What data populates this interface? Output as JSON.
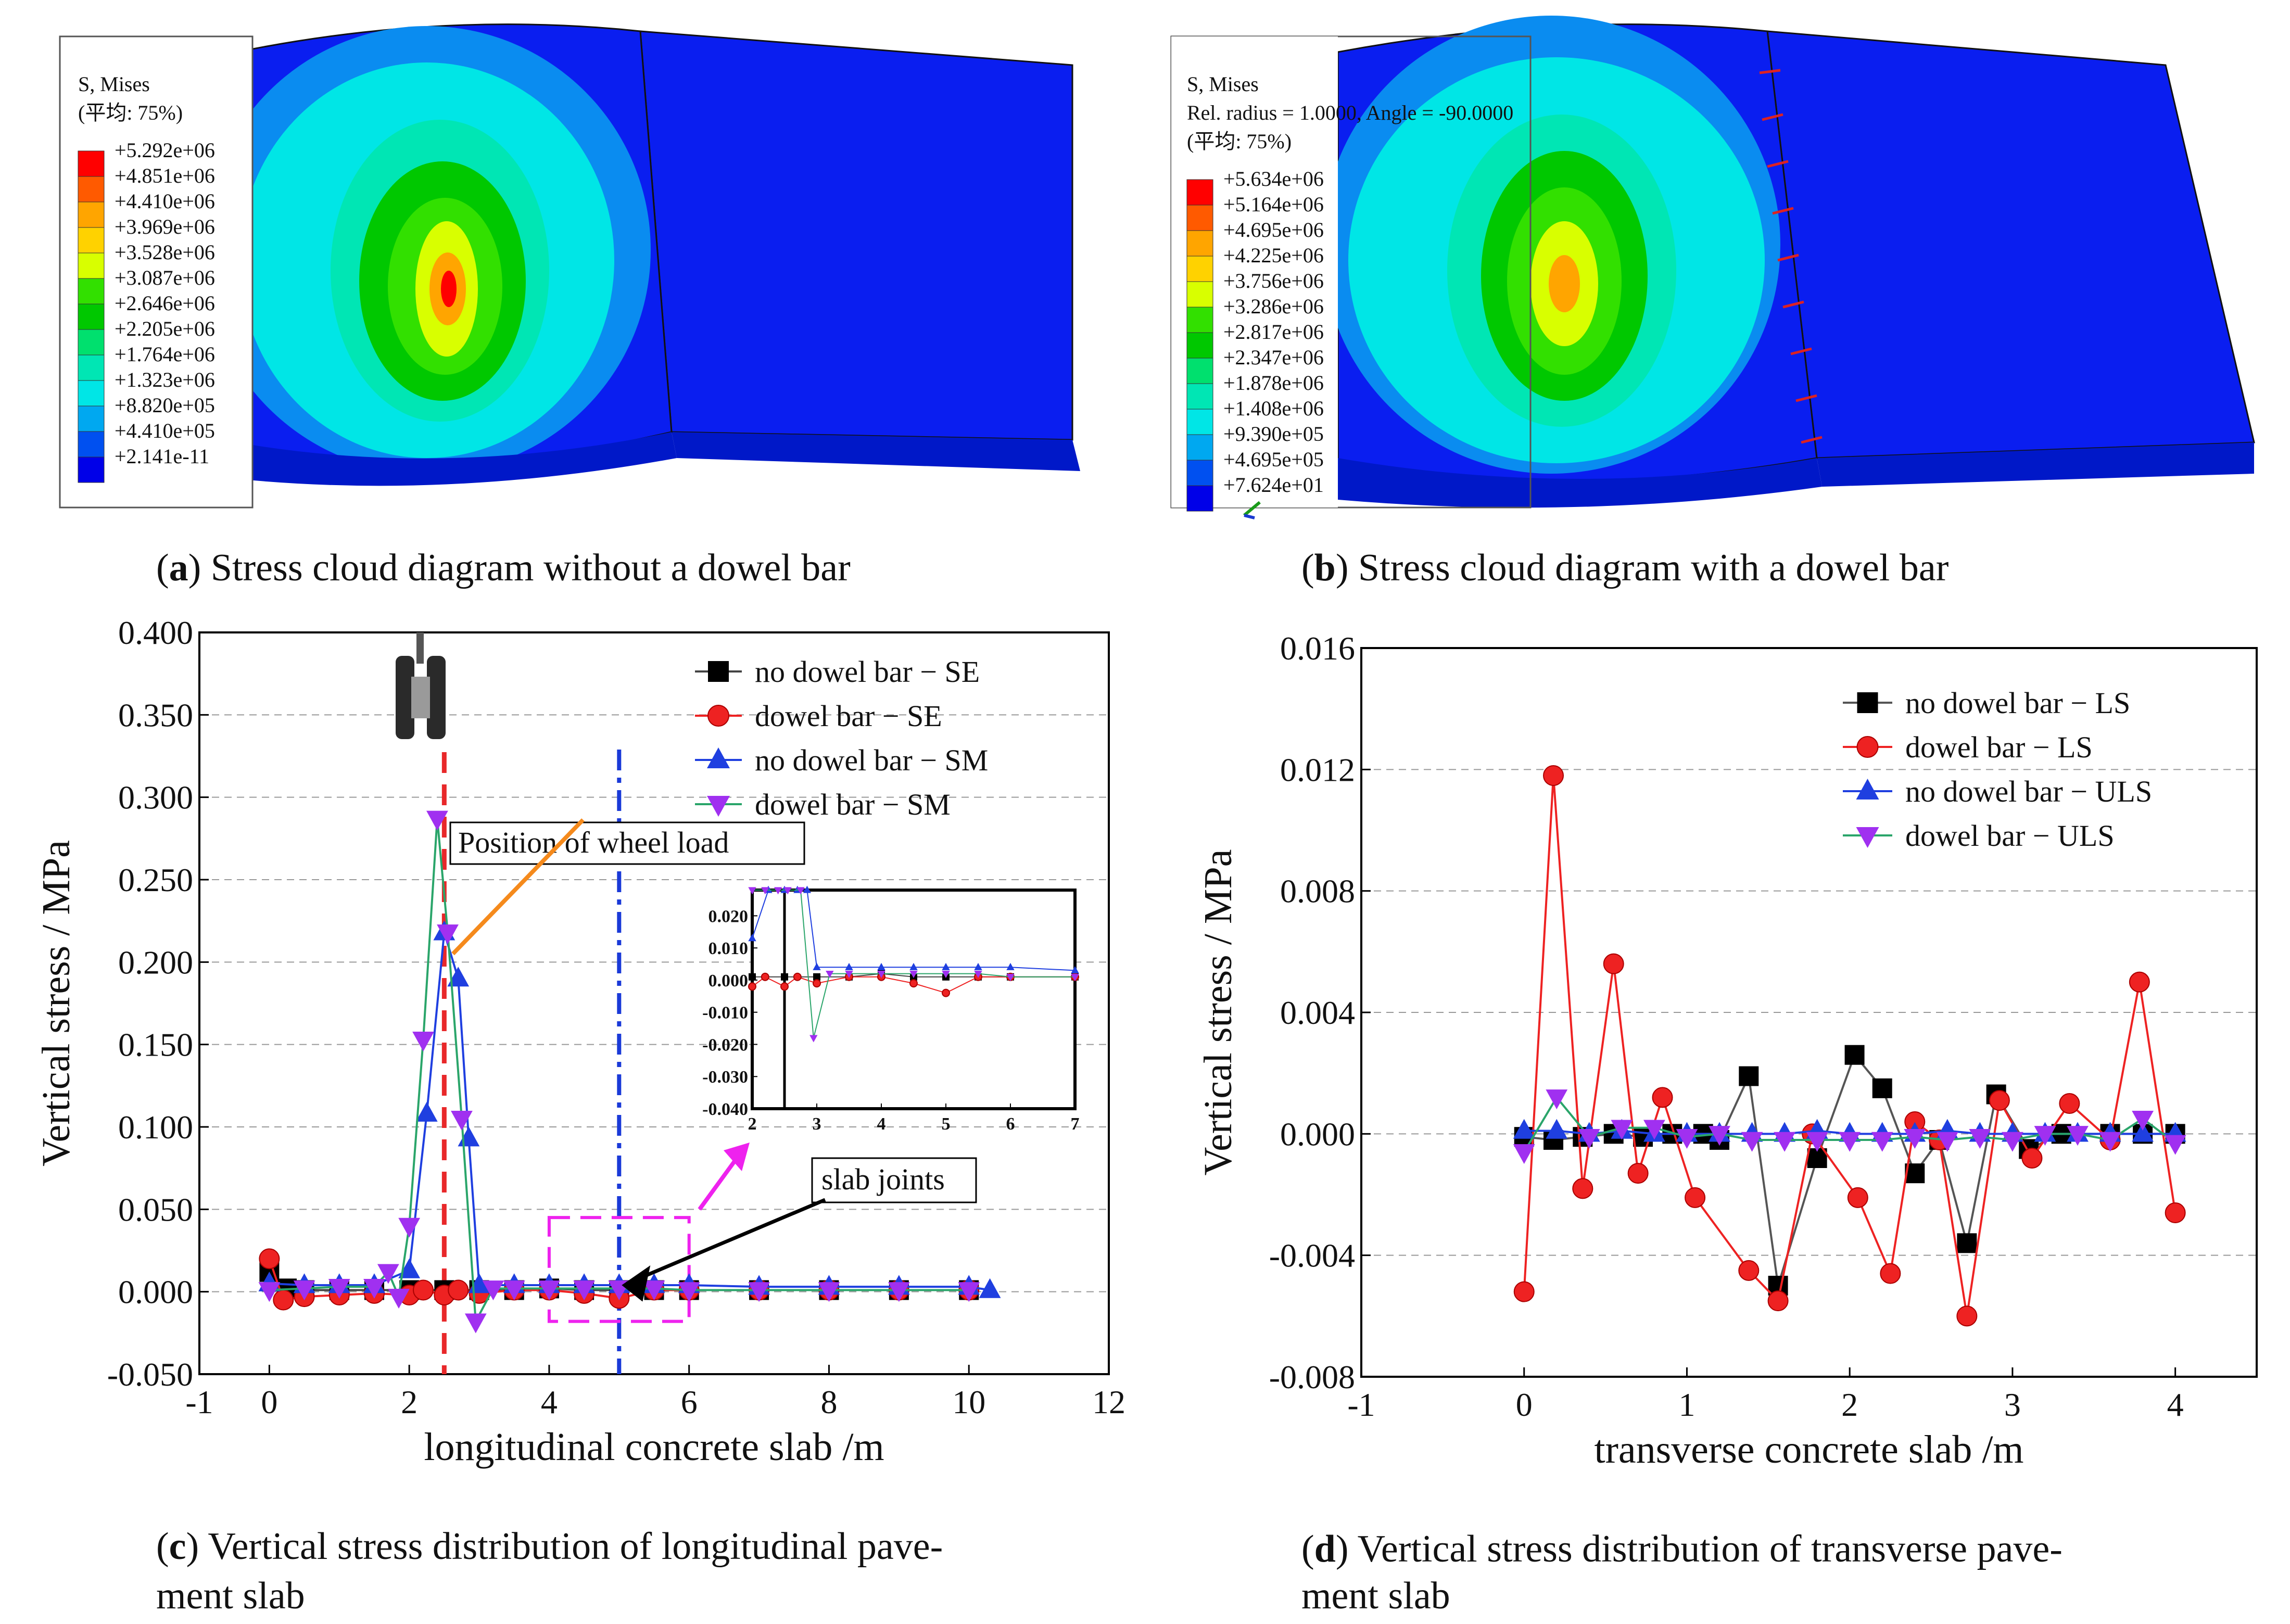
{
  "panels": {
    "a": {
      "label": "a",
      "caption": "Stress cloud diagram without a dowel bar",
      "legend_title": [
        "S, Mises",
        "(平均: 75%)"
      ],
      "legend_values": [
        "+5.292e+06",
        "+4.851e+06",
        "+4.410e+06",
        "+3.969e+06",
        "+3.528e+06",
        "+3.087e+06",
        "+2.646e+06",
        "+2.205e+06",
        "+1.764e+06",
        "+1.323e+06",
        "+8.820e+05",
        "+4.410e+05",
        "+2.141e-11"
      ]
    },
    "b": {
      "label": "b",
      "caption": "Stress cloud diagram with a dowel bar",
      "legend_title": [
        "S, Mises",
        "Rel. radius = 1.0000, Angle = -90.0000",
        "(平均: 75%)"
      ],
      "legend_values": [
        "+5.634e+06",
        "+5.164e+06",
        "+4.695e+06",
        "+4.225e+06",
        "+3.756e+06",
        "+3.286e+06",
        "+2.817e+06",
        "+2.347e+06",
        "+1.878e+06",
        "+1.408e+06",
        "+9.390e+05",
        "+4.695e+05",
        "+7.624e+01"
      ]
    },
    "c": {
      "label": "c",
      "caption_line1": "Vertical stress distribution of longitudinal pave-",
      "caption_line2": "ment slab",
      "annotations": {
        "wheel": "Position of wheel load",
        "joints": "slab joints"
      }
    },
    "d": {
      "label": "d",
      "caption_line1": "Vertical stress distribution of transverse pave-",
      "caption_line2": "ment slab"
    }
  },
  "contour_colors": [
    "#ff0000",
    "#ff5a00",
    "#ffa500",
    "#ffd200",
    "#d8ff00",
    "#32e000",
    "#00c800",
    "#00e06e",
    "#00e6b4",
    "#00e6e6",
    "#00a8f0",
    "#0050f0",
    "#0000e8"
  ],
  "chart_data": [
    {
      "type": "line",
      "xlabel": "longitudinal concrete  slab /m",
      "ylabel": "Vertical stress / MPa",
      "xlim": [
        -1,
        12
      ],
      "ylim": [
        -0.05,
        0.4
      ],
      "xticks": [
        -1,
        0,
        2,
        4,
        6,
        8,
        10,
        12
      ],
      "yticks": [
        -0.05,
        0.0,
        0.05,
        0.1,
        0.15,
        0.2,
        0.25,
        0.3,
        0.35,
        0.4
      ],
      "legend_position": "top-right",
      "series": [
        {
          "name": "no dowel bar − SE",
          "color": "#444444",
          "marker": "square",
          "x": [
            0,
            0.25,
            0.5,
            1,
            1.5,
            2,
            2.5,
            3,
            3.5,
            4,
            4.5,
            5,
            5.5,
            6,
            7,
            8,
            9,
            10
          ],
          "y": [
            0.012,
            0.002,
            0.001,
            0.001,
            0.001,
            0.001,
            0.001,
            0.001,
            0.001,
            0.002,
            0.001,
            0.001,
            0.001,
            0.001,
            0.001,
            0.001,
            0.001,
            0.001
          ]
        },
        {
          "name": "dowel bar − SE",
          "color": "#ee2222",
          "marker": "circle",
          "x": [
            0,
            0.2,
            0.5,
            1,
            1.5,
            2,
            2.2,
            2.5,
            2.7,
            3,
            3.5,
            4,
            4.5,
            5,
            5.5,
            6,
            7,
            8,
            9,
            10
          ],
          "y": [
            0.02,
            -0.005,
            -0.003,
            -0.002,
            -0.001,
            -0.002,
            0.001,
            -0.002,
            0.001,
            -0.001,
            0.001,
            0.001,
            -0.001,
            -0.004,
            0.001,
            0.001,
            0.001,
            0.001,
            0.001,
            0.001
          ]
        },
        {
          "name": "no dowel bar − SM",
          "color": "#1f3fe0",
          "marker": "triangle-up",
          "x": [
            0,
            0.5,
            1,
            1.5,
            2,
            2.25,
            2.5,
            2.7,
            2.85,
            3,
            3.5,
            4,
            4.5,
            5,
            5.5,
            6,
            7,
            8,
            9,
            10,
            10.3
          ],
          "y": [
            0.005,
            0.004,
            0.004,
            0.004,
            0.013,
            0.108,
            0.218,
            0.19,
            0.093,
            0.004,
            0.004,
            0.004,
            0.004,
            0.004,
            0.004,
            0.004,
            0.003,
            0.003,
            0.003,
            0.003,
            0.001
          ]
        },
        {
          "name": "dowel bar − SM",
          "color": "#2aa56a",
          "marker": "triangle-down",
          "x": [
            0,
            0.5,
            1,
            1.5,
            1.7,
            1.85,
            2,
            2.2,
            2.4,
            2.55,
            2.75,
            2.95,
            3.2,
            3.5,
            4,
            4.5,
            5,
            5.5,
            6,
            7,
            8,
            9,
            10
          ],
          "y": [
            0.001,
            0.002,
            0.003,
            0.003,
            0.012,
            -0.003,
            0.04,
            0.153,
            0.287,
            0.218,
            0.105,
            -0.018,
            0.002,
            0.002,
            0.002,
            0.002,
            0.002,
            0.002,
            0.001,
            0.001,
            0.001,
            0.001,
            0.001
          ]
        }
      ],
      "inset": {
        "xlim": [
          2,
          7
        ],
        "ylim": [
          -0.04,
          0.028
        ],
        "xticks": [
          2,
          3,
          4,
          5,
          6,
          7
        ],
        "yticks": [
          -0.04,
          -0.03,
          -0.02,
          -0.01,
          0.0,
          0.01,
          0.02
        ]
      }
    },
    {
      "type": "line",
      "xlabel": "transverse concrete  slab /m",
      "ylabel": "Vertical stress / MPa",
      "xlim": [
        -1,
        4.5
      ],
      "ylim": [
        -0.008,
        0.016
      ],
      "xticks": [
        -1,
        0,
        1,
        2,
        3,
        4
      ],
      "yticks": [
        -0.008,
        -0.004,
        0.0,
        0.004,
        0.008,
        0.012,
        0.016
      ],
      "legend_position": "top-right",
      "series": [
        {
          "name": "no dowel bar − LS",
          "color": "#555555",
          "marker": "square",
          "x": [
            0,
            0.18,
            0.36,
            0.55,
            0.73,
            0.91,
            1.1,
            1.2,
            1.38,
            1.56,
            1.8,
            2.03,
            2.2,
            2.4,
            2.55,
            2.72,
            2.9,
            3.1,
            3.3,
            3.6,
            3.8,
            4.0
          ],
          "y": [
            -0.0001,
            -0.0002,
            -0.0001,
            0,
            -0.0001,
            0,
            0,
            -0.0002,
            0.0019,
            -0.005,
            -0.0008,
            0.0026,
            0.0015,
            -0.0013,
            -0.0002,
            -0.0036,
            0.0013,
            -0.0005,
            0,
            0,
            0,
            0
          ]
        },
        {
          "name": "dowel bar − LS",
          "color": "#ee2222",
          "marker": "circle",
          "x": [
            0,
            0.18,
            0.36,
            0.55,
            0.7,
            0.85,
            1.05,
            1.38,
            1.56,
            1.77,
            2.05,
            2.25,
            2.4,
            2.55,
            2.72,
            2.92,
            3.12,
            3.35,
            3.6,
            3.78,
            4.0
          ],
          "y": [
            -0.0052,
            0.0118,
            -0.0018,
            0.0056,
            -0.0013,
            0.0012,
            -0.0021,
            -0.0045,
            -0.0055,
            0,
            -0.0021,
            -0.0046,
            0.0004,
            -0.0002,
            -0.006,
            0.0011,
            -0.0008,
            0.001,
            -0.0002,
            0.005,
            -0.0026
          ]
        },
        {
          "name": "no dowel bar − ULS",
          "color": "#1f3fe0",
          "marker": "triangle-up",
          "x": [
            0,
            0.2,
            0.4,
            0.6,
            0.8,
            1.0,
            1.2,
            1.4,
            1.6,
            1.8,
            2.0,
            2.2,
            2.4,
            2.6,
            2.8,
            3.0,
            3.2,
            3.4,
            3.6,
            3.8,
            4.0
          ],
          "y": [
            0.0001,
            0.0001,
            0,
            0.0001,
            0,
            0,
            0,
            0,
            0,
            0.0001,
            0,
            0,
            0,
            0.0001,
            0,
            0,
            0,
            0,
            0,
            0,
            0
          ]
        },
        {
          "name": "dowel bar − ULS",
          "color": "#2aa56a",
          "marker": "triangle-down",
          "x": [
            0,
            0.2,
            0.4,
            0.6,
            0.8,
            1.0,
            1.2,
            1.4,
            1.6,
            1.8,
            2.0,
            2.2,
            2.4,
            2.6,
            2.8,
            3.0,
            3.2,
            3.4,
            3.6,
            3.8,
            4.0
          ],
          "y": [
            -0.0006,
            0.0012,
            -0.0001,
            0.0002,
            0.0002,
            -0.0001,
            0,
            -0.0002,
            -0.0002,
            -0.0002,
            -0.0002,
            -0.0002,
            -0.0001,
            -0.0002,
            -0.0001,
            -0.0002,
            0,
            0,
            -0.0002,
            0.0005,
            -0.0003
          ]
        }
      ]
    }
  ]
}
